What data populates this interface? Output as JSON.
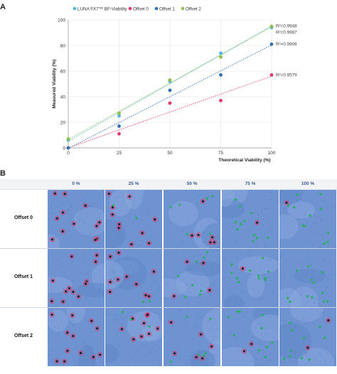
{
  "panel_a_label": "A",
  "panel_b_label": "B",
  "chart_data": {
    "type": "scatter",
    "title": "",
    "xlabel": "Theoretical Viability (%)",
    "ylabel": "Measured Viability (%)",
    "xlim": [
      0,
      100
    ],
    "ylim": [
      0,
      100
    ],
    "x_ticks": [
      "0",
      "25",
      "50",
      "75",
      "100"
    ],
    "y_ticks": [
      "0",
      "20",
      "40",
      "60",
      "80",
      "100"
    ],
    "grid": true,
    "legend_position": "top",
    "series": [
      {
        "name": "LUNA FX7™ BF-Viability",
        "color": "#4db6e6",
        "x": [
          0,
          25,
          50,
          75,
          100
        ],
        "y": [
          6,
          25,
          52,
          74,
          94
        ],
        "r2_label": "R²=0.9948"
      },
      {
        "name": "Offset 0",
        "color": "#e8336d",
        "x": [
          0,
          25,
          50,
          75,
          100
        ],
        "y": [
          0,
          11,
          35,
          37,
          57
        ],
        "r2_label": "R²=0.9579"
      },
      {
        "name": "Offset 1",
        "color": "#2f6db5",
        "x": [
          0,
          25,
          50,
          75,
          100
        ],
        "y": [
          0,
          17,
          45,
          57,
          81
        ],
        "r2_label": "R²=0.9906"
      },
      {
        "name": "Offset 2",
        "color": "#8fbf4a",
        "x": [
          0,
          25,
          50,
          75,
          100
        ],
        "y": [
          7,
          27,
          53,
          71,
          95
        ],
        "r2_label": "R²=0.9987"
      }
    ]
  },
  "image_grid": {
    "columns": [
      "0 %",
      "25 %",
      "50 %",
      "75 %",
      "100 %"
    ],
    "rows": [
      "Offset 0",
      "Offset 1",
      "Offset 2"
    ]
  }
}
